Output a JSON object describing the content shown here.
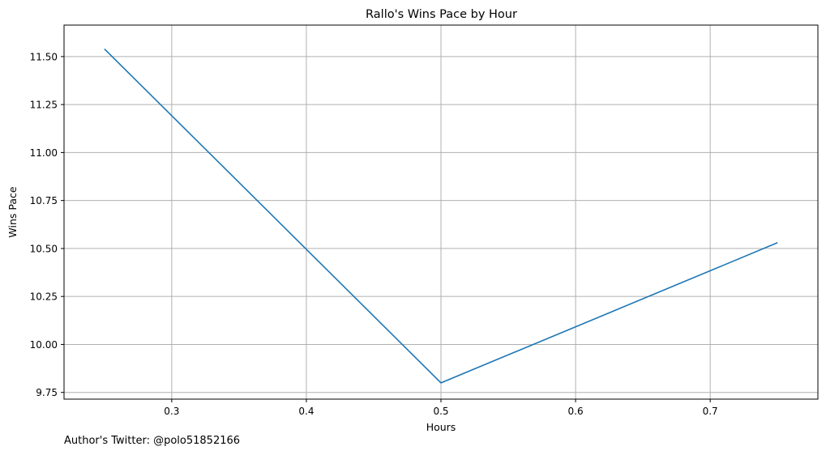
{
  "chart_data": {
    "type": "line",
    "title": "Rallo's Wins Pace by Hour",
    "xlabel": "Hours",
    "ylabel": "Wins Pace",
    "x": [
      0.25,
      0.5,
      0.75
    ],
    "series": [
      {
        "values": [
          11.54,
          9.8,
          10.53
        ]
      }
    ],
    "xlim": [
      0.22,
      0.78
    ],
    "ylim": [
      9.715,
      11.664
    ],
    "xticks": [
      0.3,
      0.4,
      0.5,
      0.6,
      0.7
    ],
    "xtick_labels": [
      "0.3",
      "0.4",
      "0.5",
      "0.6",
      "0.7"
    ],
    "yticks": [
      9.75,
      10.0,
      10.25,
      10.5,
      10.75,
      11.0,
      11.25,
      11.5
    ],
    "ytick_labels": [
      "9.75",
      "10.00",
      "10.25",
      "10.50",
      "10.75",
      "11.00",
      "11.25",
      "11.50"
    ],
    "grid": true,
    "line_color": "#1f77b4",
    "grid_color": "#b0b0b0"
  },
  "footnote": "Author's Twitter: @polo51852166"
}
